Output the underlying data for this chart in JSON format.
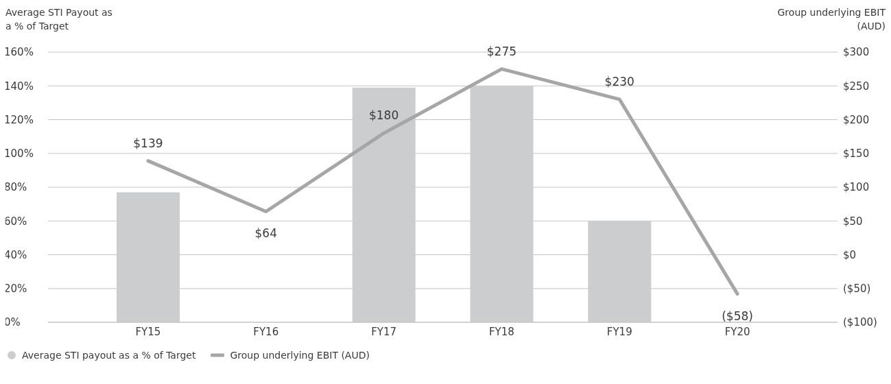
{
  "chart_data": {
    "type": "bar",
    "ylabel": "Average STI Payout as a % of Target",
    "y2label": "Group underlying EBIT (AUD)",
    "categories": [
      "FY15",
      "FY16",
      "FY17",
      "FY18",
      "FY19",
      "FY20"
    ],
    "series": [
      {
        "name": "Average STI payout as a % of Target",
        "color": "#cccdcf",
        "marker": "circle",
        "values": [
          77,
          0,
          139,
          140,
          60,
          0
        ]
      },
      {
        "name": "Group underlying EBIT (AUD)",
        "type": "line",
        "axis": "y2",
        "color": "#a6a6a6",
        "marker": "none",
        "line_style": "solid",
        "values": [
          139,
          64,
          180,
          275,
          230,
          -58
        ],
        "value_labels": [
          "$139",
          "$64",
          "$180",
          "$275",
          "$230",
          "($58)"
        ]
      }
    ],
    "ylim": [
      0,
      160
    ],
    "yticks": [
      {
        "value": 0,
        "label": "0%"
      },
      {
        "value": 20,
        "label": "20%"
      },
      {
        "value": 40,
        "label": "40%"
      },
      {
        "value": 60,
        "label": "60%"
      },
      {
        "value": 80,
        "label": "80%"
      },
      {
        "value": 100,
        "label": "100%"
      },
      {
        "value": 120,
        "label": "120%"
      },
      {
        "value": 140,
        "label": "140%"
      },
      {
        "value": 160,
        "label": "160%"
      }
    ],
    "y2lim": [
      -100,
      300
    ],
    "y2ticks": [
      {
        "value": -100,
        "label": "($100)"
      },
      {
        "value": -50,
        "label": "($50)"
      },
      {
        "value": 0,
        "label": "$0"
      },
      {
        "value": 50,
        "label": "$50"
      },
      {
        "value": 100,
        "label": "$100"
      },
      {
        "value": 150,
        "label": "$150"
      },
      {
        "value": 200,
        "label": "$200"
      },
      {
        "value": 250,
        "label": "$250"
      },
      {
        "value": 300,
        "label": "$300"
      }
    ],
    "grid": "y",
    "legend": "bottom left"
  }
}
